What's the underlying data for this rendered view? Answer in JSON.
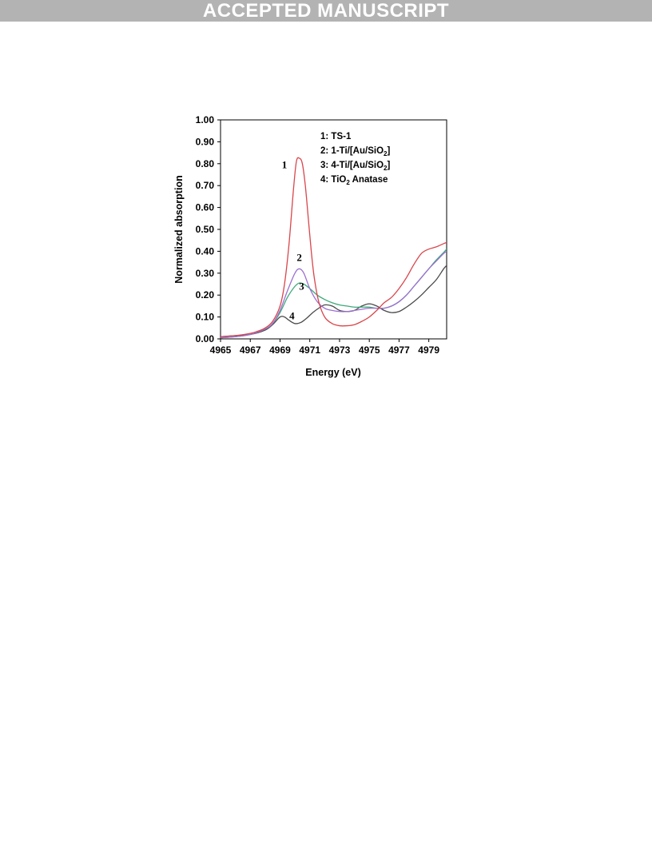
{
  "banner": {
    "text": "ACCEPTED MANUSCRIPT"
  },
  "chart_data": {
    "type": "line",
    "xlabel": "Energy (eV)",
    "ylabel": "Normalized absorption",
    "xlim": [
      4965,
      4980.2
    ],
    "ylim": [
      0,
      1
    ],
    "x_ticks": [
      "4965",
      "4967",
      "4969",
      "4971",
      "4973",
      "4975",
      "4977",
      "4979"
    ],
    "x_tick_values": [
      4965,
      4967,
      4969,
      4971,
      4973,
      4975,
      4977,
      4979
    ],
    "y_ticks": [
      "0.00",
      "0.10",
      "0.20",
      "0.30",
      "0.40",
      "0.50",
      "0.60",
      "0.70",
      "0.80",
      "0.90",
      "1.00"
    ],
    "y_tick_values": [
      0,
      0.1,
      0.2,
      0.3,
      0.4,
      0.5,
      0.6,
      0.7,
      0.8,
      0.9,
      1.0
    ],
    "grid": false,
    "legend": {
      "placement": "top-right",
      "entries": [
        {
          "prefix": "1: ",
          "main": "TS-1",
          "sub": "",
          "suffix": ""
        },
        {
          "prefix": "2: ",
          "main": "1-Ti/[Au/SiO",
          "sub": "2",
          "suffix": "]"
        },
        {
          "prefix": "3: ",
          "main": "4-Ti/[Au/SiO",
          "sub": "2",
          "suffix": "]"
        },
        {
          "prefix": "4: ",
          "main": "TiO",
          "sub": "2",
          "suffix": " Anatase"
        }
      ]
    },
    "series": [
      {
        "label": "1",
        "color": "#d9464b",
        "x": [
          4965,
          4966,
          4967,
          4967.5,
          4968,
          4968.5,
          4969,
          4969.3,
          4969.6,
          4969.9,
          4970.1,
          4970.3,
          4970.5,
          4970.7,
          4970.9,
          4971.1,
          4971.3,
          4971.6,
          4972,
          4972.5,
          4973,
          4973.5,
          4974,
          4974.5,
          4975,
          4975.5,
          4976,
          4976.5,
          4977,
          4977.5,
          4978,
          4978.5,
          4979,
          4979.5,
          4980,
          4980.2
        ],
        "y": [
          0.01,
          0.015,
          0.025,
          0.035,
          0.05,
          0.08,
          0.15,
          0.25,
          0.43,
          0.68,
          0.81,
          0.825,
          0.8,
          0.7,
          0.55,
          0.4,
          0.28,
          0.17,
          0.1,
          0.07,
          0.06,
          0.06,
          0.065,
          0.08,
          0.1,
          0.13,
          0.165,
          0.19,
          0.23,
          0.28,
          0.34,
          0.39,
          0.41,
          0.42,
          0.435,
          0.44
        ]
      },
      {
        "label": "2",
        "color": "#9d6fd2",
        "x": [
          4965,
          4966,
          4967,
          4968,
          4968.5,
          4969,
          4969.5,
          4970,
          4970.3,
          4970.6,
          4971,
          4971.5,
          4972,
          4972.5,
          4973,
          4973.5,
          4974,
          4974.5,
          4975,
          4975.5,
          4976,
          4976.5,
          4977,
          4977.5,
          4978,
          4978.5,
          4979,
          4979.5,
          4980,
          4980.2
        ],
        "y": [
          0.005,
          0.01,
          0.02,
          0.045,
          0.07,
          0.13,
          0.22,
          0.3,
          0.32,
          0.3,
          0.23,
          0.17,
          0.14,
          0.13,
          0.125,
          0.125,
          0.13,
          0.135,
          0.14,
          0.14,
          0.14,
          0.15,
          0.17,
          0.2,
          0.24,
          0.28,
          0.32,
          0.355,
          0.39,
          0.4
        ]
      },
      {
        "label": "3",
        "color": "#3daa7a",
        "x": [
          4965,
          4966,
          4967,
          4968,
          4968.5,
          4969,
          4969.5,
          4970,
          4970.3,
          4970.6,
          4971,
          4971.5,
          4972,
          4972.5,
          4973,
          4973.5,
          4974,
          4974.5,
          4975,
          4975.5,
          4976,
          4976.5,
          4977,
          4977.5,
          4978,
          4978.5,
          4979,
          4979.5,
          4980,
          4980.2
        ],
        "y": [
          0.005,
          0.01,
          0.02,
          0.045,
          0.07,
          0.12,
          0.19,
          0.24,
          0.255,
          0.25,
          0.23,
          0.2,
          0.18,
          0.165,
          0.155,
          0.15,
          0.145,
          0.145,
          0.145,
          0.14,
          0.14,
          0.15,
          0.17,
          0.2,
          0.24,
          0.28,
          0.32,
          0.36,
          0.395,
          0.41
        ]
      },
      {
        "label": "4",
        "color": "#4a4a4a",
        "x": [
          4965,
          4966,
          4967,
          4968,
          4968.5,
          4969,
          4969.3,
          4969.6,
          4970,
          4970.4,
          4970.8,
          4971.2,
          4971.6,
          4972,
          4972.5,
          4973,
          4973.5,
          4974,
          4974.5,
          4975,
          4975.5,
          4976,
          4976.5,
          4977,
          4977.5,
          4978,
          4978.5,
          4979,
          4979.5,
          4980,
          4980.2
        ],
        "y": [
          0.01,
          0.015,
          0.02,
          0.04,
          0.065,
          0.1,
          0.1,
          0.085,
          0.07,
          0.075,
          0.095,
          0.12,
          0.14,
          0.155,
          0.15,
          0.13,
          0.125,
          0.13,
          0.15,
          0.16,
          0.15,
          0.13,
          0.12,
          0.125,
          0.145,
          0.17,
          0.2,
          0.235,
          0.27,
          0.32,
          0.335
        ]
      }
    ],
    "annotations": [
      {
        "text": "1",
        "x": 4969.3,
        "y": 0.78
      },
      {
        "text": "2",
        "x": 4970.3,
        "y": 0.355
      },
      {
        "text": "3",
        "x": 4970.45,
        "y": 0.225
      },
      {
        "text": "4",
        "x": 4969.8,
        "y": 0.09
      }
    ]
  }
}
